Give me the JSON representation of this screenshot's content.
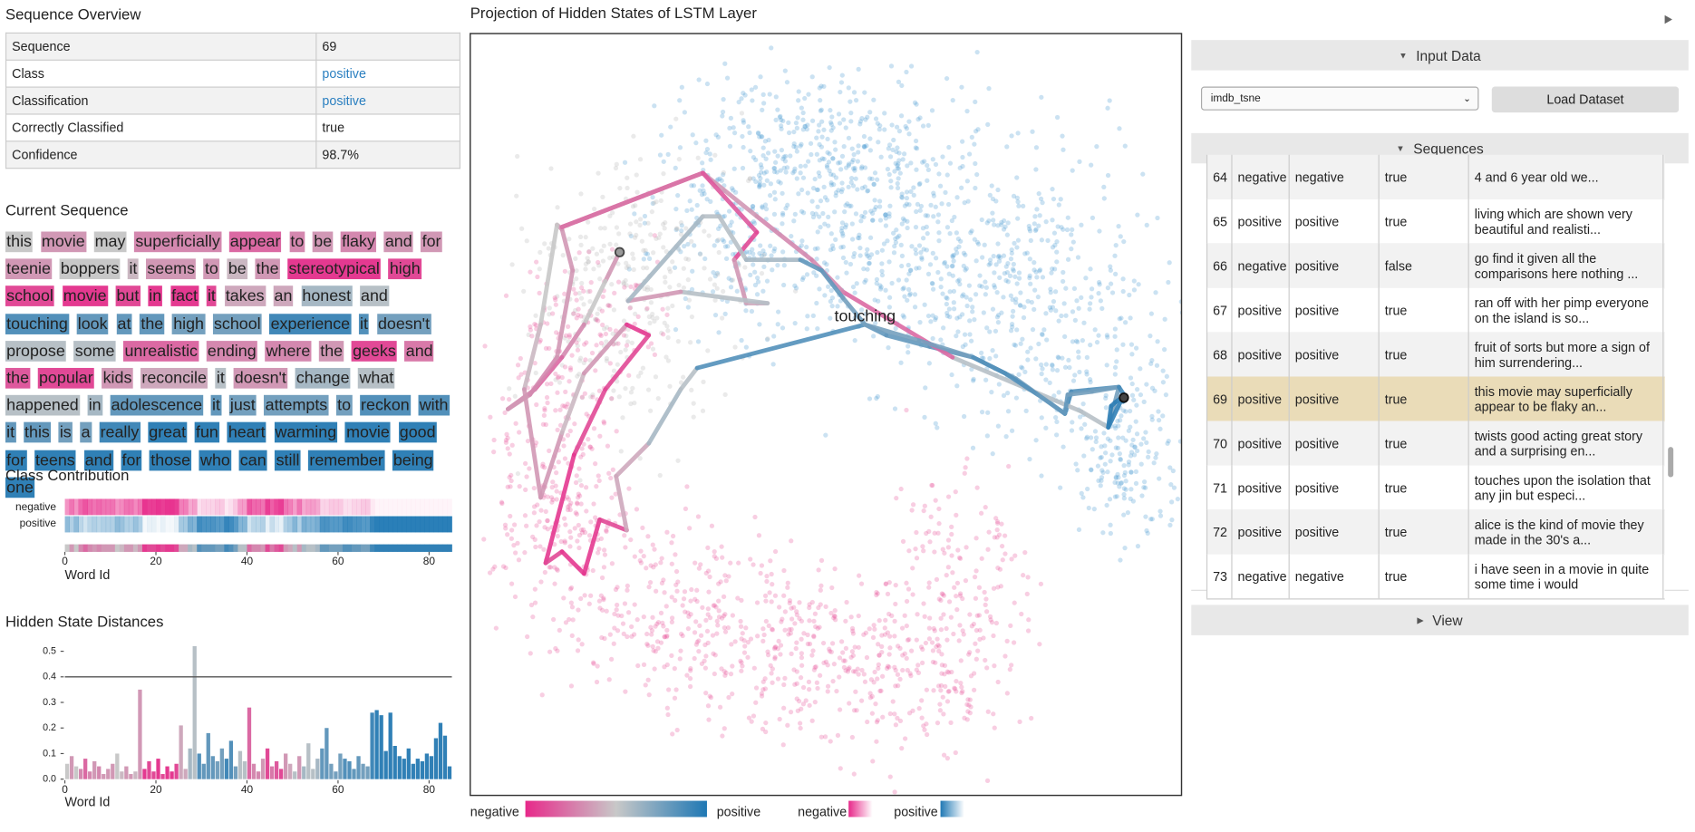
{
  "sequence_overview": {
    "title": "Sequence Overview",
    "rows": [
      [
        "Sequence",
        "69"
      ],
      [
        "Class",
        "positive"
      ],
      [
        "Classification",
        "positive"
      ],
      [
        "Correctly Classified",
        "true"
      ],
      [
        "Confidence",
        "98.7%"
      ]
    ]
  },
  "current_sequence": {
    "title": "Current Sequence",
    "words": [
      "this",
      "movie",
      "may",
      "superficially",
      "appear",
      "to",
      "be",
      "flaky",
      "and",
      "for",
      "teenie",
      "boppers",
      "it",
      "seems",
      "to",
      "be",
      "the",
      "stereotypical",
      "high",
      "school",
      "movie",
      "but",
      "in",
      "fact",
      "it",
      "takes",
      "an",
      "honest",
      "and",
      "touching",
      "look",
      "at",
      "the",
      "high",
      "school",
      "experience",
      "it",
      "doesn't",
      "propose",
      "some",
      "unrealistic",
      "ending",
      "where",
      "the",
      "geeks",
      "and",
      "the",
      "popular",
      "kids",
      "reconcile",
      "it",
      "doesn't",
      "change",
      "what",
      "happened",
      "in",
      "adolescence",
      "it",
      "just",
      "attempts",
      "to",
      "reckon",
      "with",
      "it",
      "this",
      "is",
      "a",
      "really",
      "great",
      "fun",
      "heart",
      "warming",
      "movie",
      "good",
      "for",
      "teens",
      "and",
      "for",
      "those",
      "who",
      "can",
      "still",
      "remember",
      "being",
      "one"
    ],
    "scores": [
      0,
      -0.3,
      0,
      -0.4,
      -0.6,
      -0.4,
      -0.3,
      -0.4,
      -0.3,
      -0.3,
      -0.3,
      0,
      -0.1,
      -0.3,
      -0.3,
      -0.1,
      -0.3,
      -0.9,
      -0.8,
      -0.8,
      -0.9,
      -0.8,
      -0.9,
      -0.9,
      -0.8,
      -0.2,
      -0.2,
      0.2,
      0.1,
      0.7,
      0.6,
      0.6,
      0.6,
      0.5,
      0.5,
      0.8,
      0.7,
      0.5,
      0.1,
      0.1,
      -0.6,
      -0.4,
      -0.4,
      -0.3,
      -0.8,
      -0.5,
      -0.7,
      -0.8,
      -0.3,
      -0.2,
      0.1,
      -0.3,
      0.2,
      0.1,
      0.1,
      0.2,
      0.6,
      0.6,
      0.5,
      0.5,
      0.5,
      0.7,
      0.7,
      0.6,
      0.6,
      0.5,
      0.5,
      0.8,
      0.9,
      0.9,
      0.9,
      0.9,
      0.9,
      0.9,
      0.9,
      0.9,
      0.9,
      0.9,
      0.9,
      0.9,
      0.9,
      0.9,
      0.9,
      0.9,
      0.9
    ]
  },
  "class_contribution": {
    "title": "Class Contribution",
    "row_labels": [
      "negative",
      "positive"
    ],
    "xlabel": "Word Id",
    "xlim": [
      0,
      85
    ],
    "xticks": [
      0,
      20,
      40,
      60,
      80
    ]
  },
  "hidden_state_distances": {
    "type": "bar",
    "title": "Hidden State Distances",
    "xlabel": "Word Id",
    "values": [
      0.06,
      0.09,
      0.05,
      0.04,
      0.08,
      0.03,
      0.07,
      0.05,
      0.02,
      0.04,
      0.06,
      0.1,
      0.03,
      0.05,
      0.02,
      0.03,
      0.35,
      0.04,
      0.07,
      0.03,
      0.08,
      0.02,
      0.05,
      0.03,
      0.06,
      0.21,
      0.04,
      0.12,
      0.52,
      0.1,
      0.06,
      0.18,
      0.09,
      0.07,
      0.12,
      0.08,
      0.15,
      0.05,
      0.11,
      0.07,
      0.28,
      0.06,
      0.03,
      0.08,
      0.12,
      0.05,
      0.07,
      0.04,
      0.1,
      0.06,
      0.03,
      0.09,
      0.05,
      0.14,
      0.04,
      0.08,
      0.12,
      0.2,
      0.06,
      0.03,
      0.1,
      0.08,
      0.07,
      0.04,
      0.09,
      0.06,
      0.05,
      0.26,
      0.27,
      0.25,
      0.11,
      0.26,
      0.13,
      0.09,
      0.08,
      0.12,
      0.06,
      0.08,
      0.07,
      0.1,
      0.09,
      0.16,
      0.22,
      0.17,
      0.05
    ],
    "threshold": 0.4,
    "ylim": [
      0,
      0.55
    ],
    "yticks": [
      {
        "value": 0,
        "label": "0.0"
      },
      0.1,
      0.2,
      0.3,
      0.4,
      0.5
    ],
    "xlim": [
      0,
      85
    ],
    "xticks": [
      0,
      20,
      40,
      60,
      80
    ]
  },
  "projection": {
    "title": "Projection of Hidden States of LSTM Layer",
    "xlim": [
      0,
      100
    ],
    "ylim": [
      100,
      0
    ],
    "highlight_word": 29,
    "trajectory": {
      "x": [
        21.0,
        19.0,
        16.0,
        12.9,
        9.1,
        5.3,
        8.4,
        12.2,
        14.4,
        12.9,
        12.2,
        9.9,
        7.6,
        9.9,
        12.9,
        16.0,
        22.0,
        25.1,
        19.0,
        14.6,
        10.6,
        12.9,
        16.0,
        18.2,
        22.0,
        20.5,
        25.1,
        29.6,
        31.9,
        55.5,
        58.5,
        64.6,
        70.7,
        76.7,
        83.6,
        84.5,
        91.2,
        89.7,
        85.9,
        67.8,
        52.4,
        48.0,
        40.3,
        32.7,
        12.9,
        32.7,
        40.3,
        37.1,
        38.8,
        41.8,
        29.6,
        22.2,
        32.7,
        35.0,
        38.8,
        46.4,
        49.4,
        52.4,
        55.5,
        63.1,
        70.7,
        75.2,
        79.8,
        83.6,
        84.0,
        87.4,
        91.2,
        91.9,
        89.7,
        90.1,
        90.7,
        91.9,
        92.0,
        91.8,
        92.1,
        91.9,
        92.2,
        91.9,
        92.0,
        91.8,
        92.1,
        92.0,
        91.9,
        92.0,
        91.9
      ],
      "y": [
        28.7,
        32.5,
        38.2,
        42.5,
        46.7,
        49.3,
        47.4,
        42.5,
        31.1,
        25.7,
        25.1,
        38.2,
        46.7,
        60.9,
        52.4,
        44.6,
        38.2,
        39.6,
        46.7,
        55.3,
        69.5,
        68.0,
        70.9,
        63.8,
        65.2,
        58.1,
        53.8,
        46.7,
        43.9,
        38.2,
        39.6,
        41.1,
        42.5,
        45.3,
        49.9,
        47.0,
        46.4,
        51.7,
        49.6,
        42.5,
        33.9,
        29.7,
        24.0,
        18.3,
        25.4,
        18.3,
        26.1,
        29.7,
        35.4,
        35.4,
        33.9,
        35.1,
        24.0,
        24.0,
        29.7,
        29.7,
        31.1,
        34.7,
        38.2,
        40.3,
        42.5,
        44.6,
        47.4,
        49.9,
        47.4,
        47.0,
        46.4,
        47.4,
        51.7,
        48.9,
        48.4,
        47.6,
        48.0,
        48.3,
        47.9,
        48.1,
        47.8,
        47.7,
        48.2,
        47.9,
        48.0,
        47.8,
        48.0,
        47.9,
        47.8
      ]
    },
    "legend_labels": [
      "negative",
      "positive",
      "negative",
      "positive"
    ]
  },
  "sidebar": {
    "input_data": {
      "title": "Input Data",
      "dataset": "imdb_tsne",
      "button": "Load Dataset"
    },
    "sequences": {
      "title": "Sequences",
      "selected": 69,
      "rows": [
        [
          64,
          "negative",
          "negative",
          "true",
          "4 and 6 year old we..."
        ],
        [
          65,
          "positive",
          "positive",
          "true",
          "living which are shown very beautiful and realisti..."
        ],
        [
          66,
          "negative",
          "positive",
          "false",
          "go find it given all the comparisons here nothing ..."
        ],
        [
          67,
          "positive",
          "positive",
          "true",
          "ran off with her pimp everyone on the island is so..."
        ],
        [
          68,
          "positive",
          "positive",
          "true",
          "fruit of sorts but more a sign of him surrendering..."
        ],
        [
          69,
          "positive",
          "positive",
          "true",
          "this movie may superficially appear to be flaky an..."
        ],
        [
          70,
          "positive",
          "positive",
          "true",
          "twists good acting great story and a surprising en..."
        ],
        [
          71,
          "positive",
          "positive",
          "true",
          "touches upon the isolation that any jin but especi..."
        ],
        [
          72,
          "positive",
          "positive",
          "true",
          "alice is the kind of movie they made in the 30's a..."
        ],
        [
          73,
          "negative",
          "negative",
          "true",
          "i have seen in a movie in quite some time i would"
        ]
      ]
    },
    "view": {
      "title": "View"
    }
  }
}
